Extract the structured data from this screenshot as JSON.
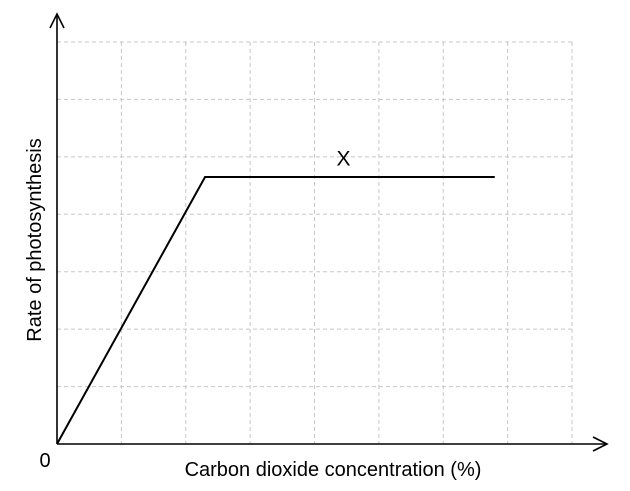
{
  "chart_data": {
    "type": "line",
    "xlabel": "Carbon dioxide concentration (%)",
    "ylabel": "Rate of photosynthesis",
    "origin_label": "0",
    "grid": true,
    "xlim": [
      0,
      8
    ],
    "ylim": [
      0,
      7
    ],
    "x_tick_labels": [],
    "y_tick_labels": [],
    "series": [
      {
        "x": [
          0,
          2.3,
          6.8
        ],
        "y": [
          0,
          4.65,
          4.65
        ]
      }
    ],
    "annotations": [
      {
        "text": "X",
        "x": 4.45,
        "y": 4.85
      }
    ]
  }
}
